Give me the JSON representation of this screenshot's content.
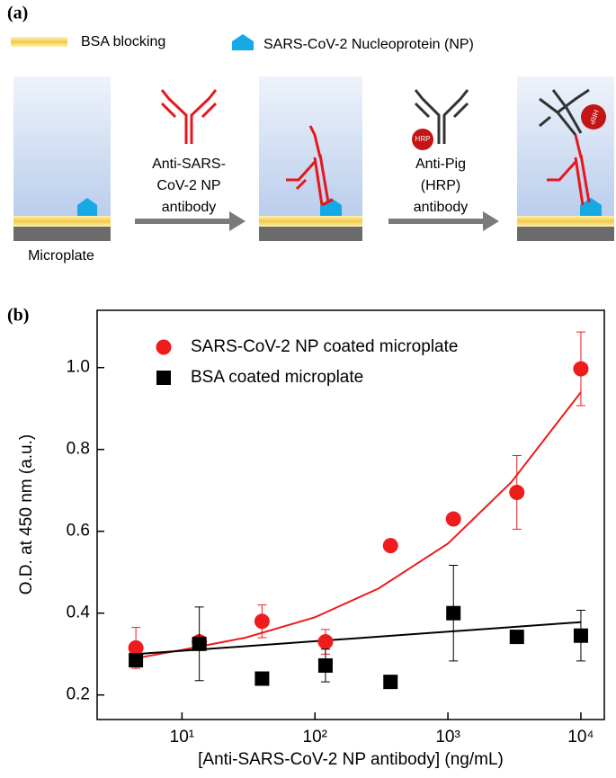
{
  "diagram": {
    "panel_label": "(a)",
    "bsa_legend": "BSA blocking",
    "np_legend": "SARS-CoV-2 Nucleoprotein (NP)",
    "plate_label": "Microplate",
    "step1_lines": [
      "Anti-SARS-",
      "CoV-2 NP",
      "antibody"
    ],
    "step2_lines": [
      "Anti-Pig",
      "(HRP)",
      "antibody"
    ],
    "hrp": "HRP"
  },
  "chart_data": {
    "type": "scatter",
    "panel_label": "(b)",
    "xlabel": "[Anti-SARS-CoV-2 NP antibody] (ng/mL)",
    "ylabel": "O.D. at 450 nm (a.u.)",
    "log_x": true,
    "legend": "top-left",
    "x": [
      4.5,
      13.5,
      40,
      120,
      370,
      1100,
      3300,
      10000
    ],
    "series": [
      {
        "name": "SARS-CoV-2 NP coated microplate",
        "color": "#ee1c1c",
        "marker": "circle",
        "values": [
          0.315,
          0.33,
          0.38,
          0.33,
          0.565,
          0.63,
          0.695,
          0.997
        ],
        "errors": [
          0.05,
          0.01,
          0.04,
          0.03,
          0,
          0,
          0.09,
          0.09
        ]
      },
      {
        "name": "BSA coated microplate",
        "color": "#000000",
        "marker": "square",
        "values": [
          0.285,
          0.325,
          0.24,
          0.272,
          0.232,
          0.4,
          0.342,
          0.345
        ],
        "errors": [
          0.01,
          0.09,
          0,
          0.04,
          0,
          0.117,
          0,
          0.062
        ]
      }
    ],
    "fits": [
      {
        "color": "#ee1c1c",
        "x": [
          4.5,
          10,
          30,
          100,
          300,
          1000,
          3000,
          10000
        ],
        "values": [
          0.29,
          0.31,
          0.34,
          0.39,
          0.46,
          0.57,
          0.72,
          0.94
        ]
      },
      {
        "color": "#000000",
        "x": [
          4.5,
          10000
        ],
        "values": [
          0.3,
          0.378
        ]
      }
    ],
    "xlim": [
      2.3,
      15000
    ],
    "xticks": [
      {
        "value": 10,
        "label": "10¹"
      },
      {
        "value": 100,
        "label": "10²"
      },
      {
        "value": 1000,
        "label": "10³"
      },
      {
        "value": 10000,
        "label": "10⁴"
      }
    ],
    "ylim": [
      0.14,
      1.14
    ],
    "yticks": [
      0.2,
      0.4,
      0.6,
      0.8,
      {
        "value": 1,
        "label": "1.0"
      }
    ]
  }
}
